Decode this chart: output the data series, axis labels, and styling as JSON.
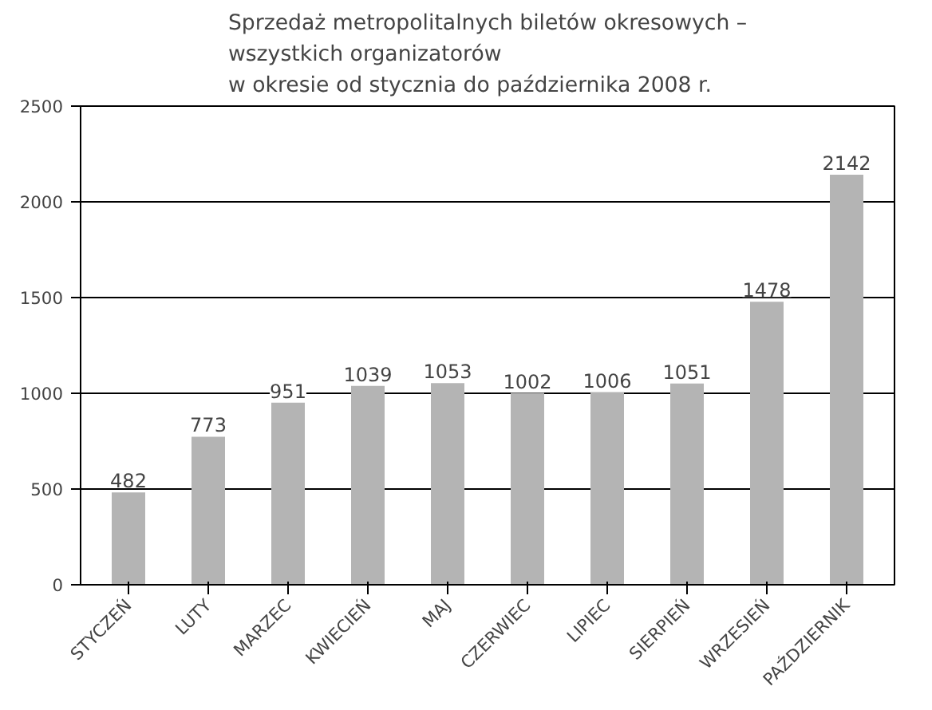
{
  "chart_data": {
    "type": "bar",
    "title": "Sprzedaż metropolitalnych biletów okresowych –\nwszystkich organizatorów\nw okresie od stycznia do października 2008 r.",
    "categories": [
      "STYCZEŃ",
      "LUTY",
      "MARZEC",
      "KWIECIEŃ",
      "MAJ",
      "CZERWIEC",
      "LIPIEC",
      "SIERPIEŃ",
      "WRZESIEŃ",
      "PAŹDZIERNIK"
    ],
    "values": [
      482,
      773,
      951,
      1039,
      1053,
      1002,
      1006,
      1051,
      1478,
      2142
    ],
    "color": "#b4b4b4",
    "ylim": [
      0,
      2500
    ],
    "yticks": [
      0,
      500,
      1000,
      1500,
      2000,
      2500
    ],
    "grid": "y",
    "data_labels": true
  }
}
